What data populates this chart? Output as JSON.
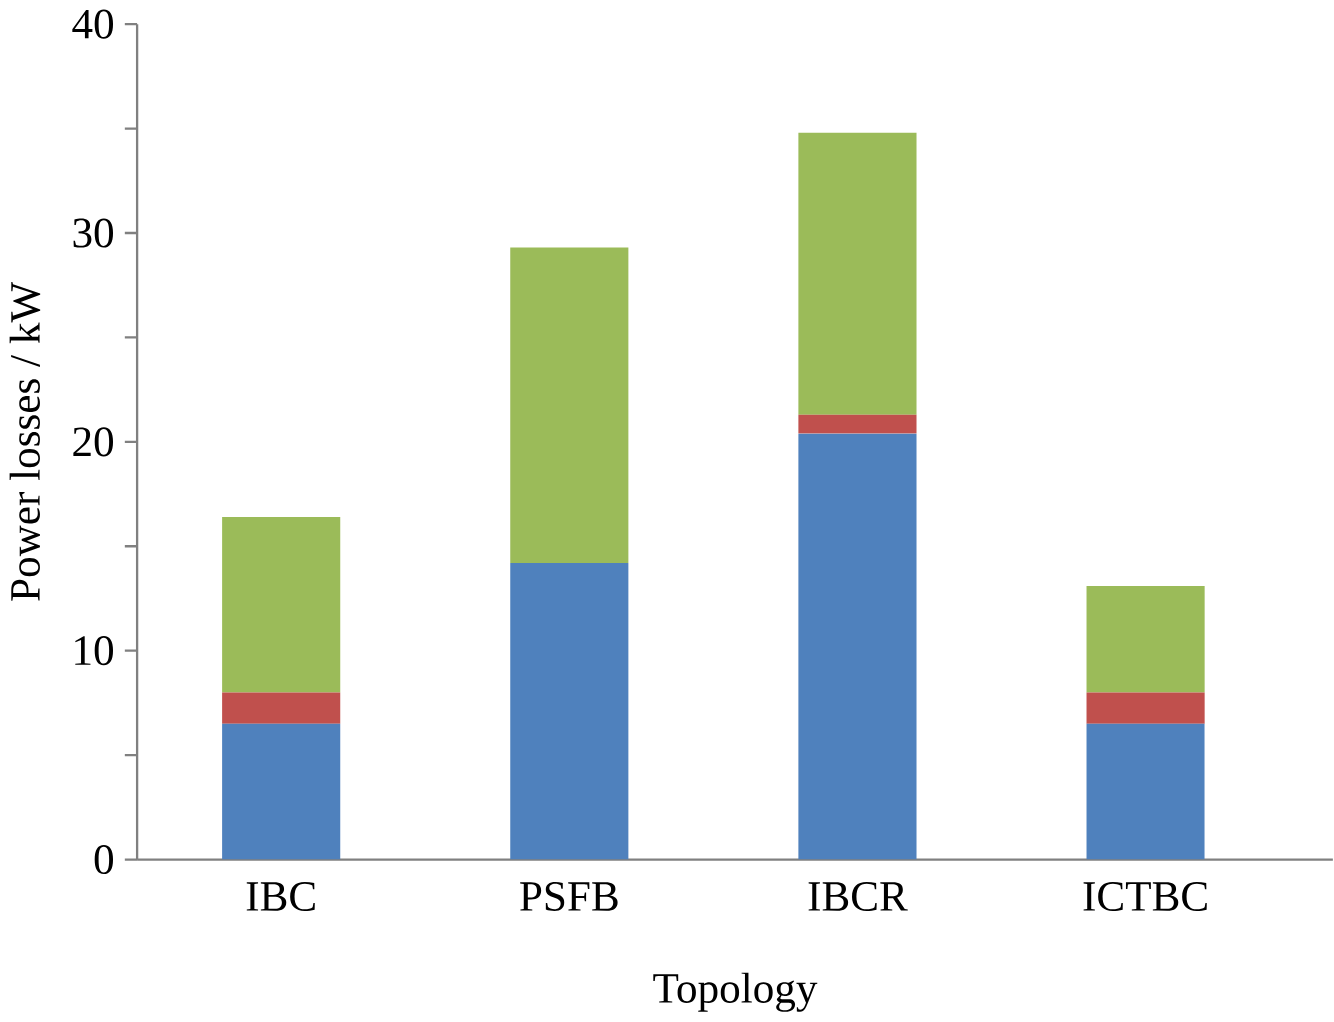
{
  "chart_data": {
    "type": "bar",
    "stacked": true,
    "xlabel": "Topology",
    "ylabel": "Power losses / kW",
    "categories": [
      "IBC",
      "PSFB",
      "IBCR",
      "ICTBC"
    ],
    "series": [
      {
        "color": "#4f81bd",
        "values": [
          6.5,
          14.2,
          20.4,
          6.5
        ]
      },
      {
        "color": "#c0504d",
        "values": [
          1.5,
          0,
          0.9,
          1.5
        ]
      },
      {
        "color": "#9bbb59",
        "values": [
          8.4,
          15.1,
          13.5,
          5.1
        ]
      }
    ],
    "ylim": [
      0,
      40
    ],
    "yticks": [
      0,
      {
        "value": 5,
        "label": null
      },
      10,
      {
        "value": 15,
        "label": null
      },
      20,
      {
        "value": 25,
        "label": null
      },
      30,
      {
        "value": 35,
        "label": null
      },
      40
    ],
    "grid": false
  }
}
